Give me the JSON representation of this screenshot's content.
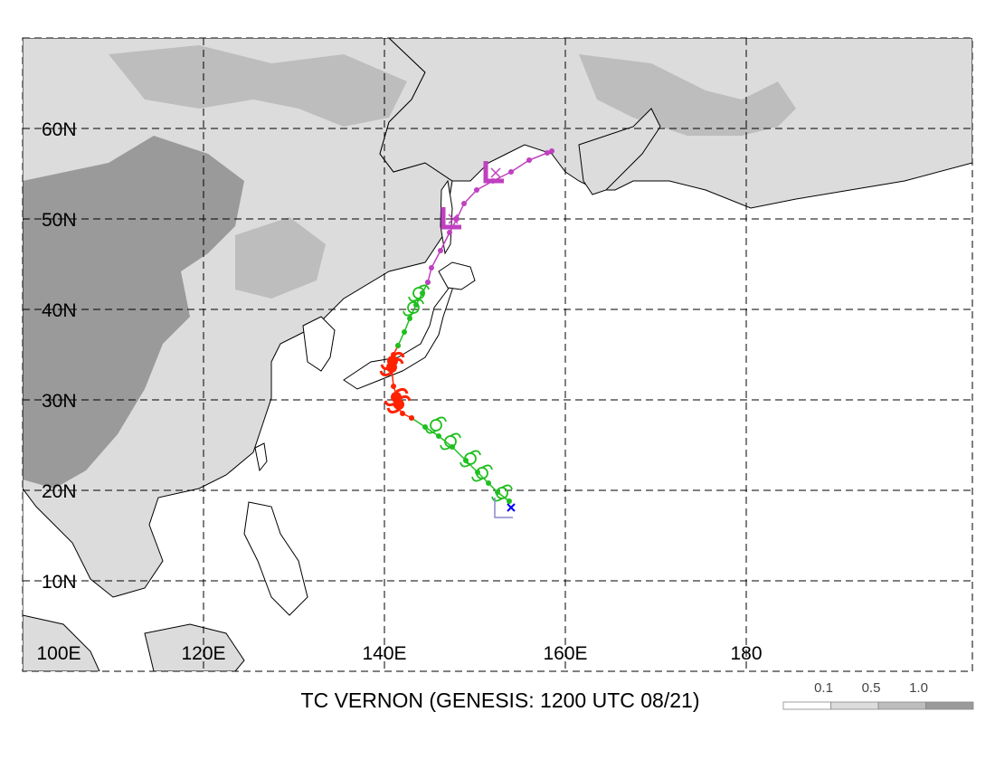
{
  "map": {
    "lon_range": [
      100,
      200
    ],
    "lat_range": [
      3,
      70
    ],
    "lon_labels": [
      {
        "lon": 100,
        "text": "100E"
      },
      {
        "lon": 120,
        "text": "120E"
      },
      {
        "lon": 140,
        "text": "140E"
      },
      {
        "lon": 160,
        "text": "160E"
      },
      {
        "lon": 180,
        "text": "180"
      }
    ],
    "lat_labels": [
      {
        "lat": 10,
        "text": "10N"
      },
      {
        "lat": 20,
        "text": "20N"
      },
      {
        "lat": 30,
        "text": "30N"
      },
      {
        "lat": 40,
        "text": "40N"
      },
      {
        "lat": 50,
        "text": "50N"
      },
      {
        "lat": 60,
        "text": "60N"
      }
    ],
    "gridlines": "dashed"
  },
  "title": "TC VERNON (GENESIS: 1200 UTC 08/21)",
  "legend": {
    "labels": [
      "0.1",
      "0.5",
      "1.0"
    ],
    "colors": [
      "#ffffff",
      "#dcdcdc",
      "#bdbdbd",
      "#9a9a9a"
    ]
  },
  "track": {
    "genesis_marker": {
      "lon": 153.2,
      "lat": 18.3,
      "color": "#0000ff"
    },
    "segments": [
      {
        "color": "#1fbf1f",
        "points": [
          [
            153.8,
            18.8
          ],
          [
            152.5,
            19.8
          ],
          [
            151.5,
            20.8
          ],
          [
            150.3,
            22.0
          ],
          [
            149.0,
            23.3
          ],
          [
            147.5,
            24.8
          ],
          [
            146.0,
            26.0
          ],
          [
            144.5,
            27.0
          ],
          [
            143.0,
            28.0
          ]
        ]
      },
      {
        "color": "#ff2200",
        "points": [
          [
            143.0,
            28.0
          ],
          [
            142.0,
            28.5
          ],
          [
            141.2,
            29.5
          ],
          [
            141.5,
            30.0
          ],
          [
            141.0,
            31.5
          ],
          [
            140.8,
            33.5
          ],
          [
            141.0,
            35.0
          ],
          [
            141.5,
            36.0
          ]
        ]
      },
      {
        "color": "#1fbf1f",
        "points": [
          [
            141.5,
            36.0
          ],
          [
            142.2,
            37.5
          ],
          [
            142.8,
            39.0
          ],
          [
            143.5,
            40.5
          ],
          [
            144.2,
            41.8
          ],
          [
            144.8,
            43.0
          ]
        ]
      },
      {
        "color": "#c040c0",
        "points": [
          [
            144.8,
            43.0
          ],
          [
            145.2,
            44.6
          ],
          [
            146.2,
            46.5
          ],
          [
            147.2,
            48.5
          ],
          [
            148.0,
            50.0
          ],
          [
            148.8,
            51.7
          ],
          [
            150.2,
            53.2
          ],
          [
            152.0,
            54.2
          ],
          [
            154.0,
            55.2
          ],
          [
            156.0,
            56.5
          ],
          [
            158.0,
            57.3
          ],
          [
            158.5,
            57.5
          ]
        ]
      }
    ],
    "symbols": [
      {
        "kind": "tropical-storm",
        "lon": 153.0,
        "lat": 19.7,
        "color": "#1fbf1f"
      },
      {
        "kind": "tropical-storm",
        "lon": 150.8,
        "lat": 21.9,
        "color": "#1fbf1f"
      },
      {
        "kind": "tropical-storm",
        "lon": 149.5,
        "lat": 23.5,
        "color": "#1fbf1f"
      },
      {
        "kind": "tropical-storm",
        "lon": 147.3,
        "lat": 25.4,
        "color": "#1fbf1f"
      },
      {
        "kind": "tropical-storm",
        "lon": 145.7,
        "lat": 27.2,
        "color": "#1fbf1f"
      },
      {
        "kind": "typhoon",
        "lon": 141.6,
        "lat": 29.5,
        "color": "#ff2200"
      },
      {
        "kind": "typhoon",
        "lon": 141.3,
        "lat": 30.3,
        "color": "#ff2200"
      },
      {
        "kind": "typhoon",
        "lon": 140.8,
        "lat": 33.6,
        "color": "#ff2200"
      },
      {
        "kind": "typhoon",
        "lon": 140.9,
        "lat": 34.3,
        "color": "#ff2200"
      },
      {
        "kind": "tropical-storm",
        "lon": 143.2,
        "lat": 40.2,
        "color": "#1fbf1f"
      },
      {
        "kind": "tropical-storm",
        "lon": 143.8,
        "lat": 41.8,
        "color": "#1fbf1f"
      },
      {
        "kind": "extratropical",
        "lon": 147.3,
        "lat": 49.9,
        "color": "#c040c0"
      },
      {
        "kind": "extratropical",
        "lon": 152.0,
        "lat": 55.0,
        "color": "#c040c0"
      }
    ],
    "start_marker": {
      "lon": 153.0,
      "lat": 17.8,
      "color": "#8888cc"
    }
  }
}
